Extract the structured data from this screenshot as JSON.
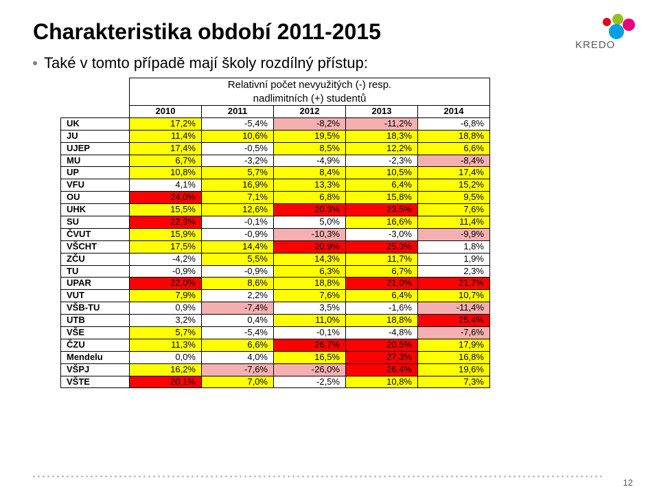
{
  "title": "Charakteristika období 2011-2015",
  "bullet": "Také v tomto případě mají školy rozdílný přístup:",
  "table_title_line1": "Relativní počet nevyužitých (-) resp.",
  "table_title_line2": "nadlimitních (+) studentů",
  "years": [
    "2010",
    "2011",
    "2012",
    "2013",
    "2014"
  ],
  "colors": {
    "yellow": "#ffff00",
    "red": "#ff0000",
    "pink": "#f4b0b0",
    "white": "#ffffff"
  },
  "rows": [
    {
      "label": "UK",
      "cells": [
        {
          "v": "17,2%",
          "c": "yellow"
        },
        {
          "v": "-5,4%",
          "c": "white"
        },
        {
          "v": "-8,2%",
          "c": "pink"
        },
        {
          "v": "-11,2%",
          "c": "pink"
        },
        {
          "v": "-6,8%",
          "c": "white"
        }
      ]
    },
    {
      "label": "JU",
      "cells": [
        {
          "v": "11,4%",
          "c": "yellow"
        },
        {
          "v": "10,6%",
          "c": "yellow"
        },
        {
          "v": "19,5%",
          "c": "yellow"
        },
        {
          "v": "18,3%",
          "c": "yellow"
        },
        {
          "v": "18,8%",
          "c": "yellow"
        }
      ]
    },
    {
      "label": "UJEP",
      "cells": [
        {
          "v": "17,4%",
          "c": "yellow"
        },
        {
          "v": "-0,5%",
          "c": "white"
        },
        {
          "v": "8,5%",
          "c": "yellow"
        },
        {
          "v": "12,2%",
          "c": "yellow"
        },
        {
          "v": "6,6%",
          "c": "yellow"
        }
      ]
    },
    {
      "label": "MU",
      "cells": [
        {
          "v": "6,7%",
          "c": "yellow"
        },
        {
          "v": "-3,2%",
          "c": "white"
        },
        {
          "v": "-4,9%",
          "c": "white"
        },
        {
          "v": "-2,3%",
          "c": "white"
        },
        {
          "v": "-8,4%",
          "c": "pink"
        }
      ]
    },
    {
      "label": "UP",
      "cells": [
        {
          "v": "10,8%",
          "c": "yellow"
        },
        {
          "v": "5,7%",
          "c": "yellow"
        },
        {
          "v": "8,4%",
          "c": "yellow"
        },
        {
          "v": "10,5%",
          "c": "yellow"
        },
        {
          "v": "17,4%",
          "c": "yellow"
        }
      ]
    },
    {
      "label": "VFU",
      "cells": [
        {
          "v": "4,1%",
          "c": "white"
        },
        {
          "v": "16,9%",
          "c": "yellow"
        },
        {
          "v": "13,3%",
          "c": "yellow"
        },
        {
          "v": "6,4%",
          "c": "yellow"
        },
        {
          "v": "15,2%",
          "c": "yellow"
        }
      ]
    },
    {
      "label": "OU",
      "cells": [
        {
          "v": "24,0%",
          "c": "red"
        },
        {
          "v": "7,1%",
          "c": "yellow"
        },
        {
          "v": "6,8%",
          "c": "yellow"
        },
        {
          "v": "15,8%",
          "c": "yellow"
        },
        {
          "v": "9,5%",
          "c": "yellow"
        }
      ]
    },
    {
      "label": "UHK",
      "cells": [
        {
          "v": "15,5%",
          "c": "yellow"
        },
        {
          "v": "12,6%",
          "c": "yellow"
        },
        {
          "v": "20,3%",
          "c": "red"
        },
        {
          "v": "23,5%",
          "c": "red"
        },
        {
          "v": "7,6%",
          "c": "yellow"
        }
      ]
    },
    {
      "label": "SU",
      "cells": [
        {
          "v": "22,3%",
          "c": "red"
        },
        {
          "v": "-0,1%",
          "c": "white"
        },
        {
          "v": "5,0%",
          "c": "white"
        },
        {
          "v": "16,6%",
          "c": "yellow"
        },
        {
          "v": "11,4%",
          "c": "yellow"
        }
      ]
    },
    {
      "label": "ČVUT",
      "cells": [
        {
          "v": "15,9%",
          "c": "yellow"
        },
        {
          "v": "-0,9%",
          "c": "white"
        },
        {
          "v": "-10,3%",
          "c": "pink"
        },
        {
          "v": "-3,0%",
          "c": "white"
        },
        {
          "v": "-9,9%",
          "c": "pink"
        }
      ]
    },
    {
      "label": "VŠCHT",
      "cells": [
        {
          "v": "17,5%",
          "c": "yellow"
        },
        {
          "v": "14,4%",
          "c": "yellow"
        },
        {
          "v": "20,9%",
          "c": "red"
        },
        {
          "v": "25,3%",
          "c": "red"
        },
        {
          "v": "1,8%",
          "c": "white"
        }
      ]
    },
    {
      "label": "ZČU",
      "cells": [
        {
          "v": "-4,2%",
          "c": "white"
        },
        {
          "v": "5,5%",
          "c": "yellow"
        },
        {
          "v": "14,3%",
          "c": "yellow"
        },
        {
          "v": "11,7%",
          "c": "yellow"
        },
        {
          "v": "1,9%",
          "c": "white"
        }
      ]
    },
    {
      "label": "TU",
      "cells": [
        {
          "v": "-0,9%",
          "c": "white"
        },
        {
          "v": "-0,9%",
          "c": "white"
        },
        {
          "v": "6,3%",
          "c": "yellow"
        },
        {
          "v": "6,7%",
          "c": "yellow"
        },
        {
          "v": "2,3%",
          "c": "white"
        }
      ]
    },
    {
      "label": "UPAR",
      "cells": [
        {
          "v": "22,0%",
          "c": "red"
        },
        {
          "v": "8,6%",
          "c": "yellow"
        },
        {
          "v": "18,8%",
          "c": "yellow"
        },
        {
          "v": "21,0%",
          "c": "red"
        },
        {
          "v": "21,7%",
          "c": "red"
        }
      ]
    },
    {
      "label": "VUT",
      "cells": [
        {
          "v": "7,9%",
          "c": "yellow"
        },
        {
          "v": "2,2%",
          "c": "white"
        },
        {
          "v": "7,6%",
          "c": "yellow"
        },
        {
          "v": "6,4%",
          "c": "yellow"
        },
        {
          "v": "10,7%",
          "c": "yellow"
        }
      ]
    },
    {
      "label": "VŠB-TU",
      "cells": [
        {
          "v": "0,9%",
          "c": "white"
        },
        {
          "v": "-7,4%",
          "c": "pink"
        },
        {
          "v": "3,5%",
          "c": "white"
        },
        {
          "v": "-1,6%",
          "c": "white"
        },
        {
          "v": "-11,4%",
          "c": "pink"
        }
      ]
    },
    {
      "label": "UTB",
      "cells": [
        {
          "v": "3,2%",
          "c": "white"
        },
        {
          "v": "0,4%",
          "c": "white"
        },
        {
          "v": "11,0%",
          "c": "yellow"
        },
        {
          "v": "18,8%",
          "c": "yellow"
        },
        {
          "v": "25,4%",
          "c": "red"
        }
      ]
    },
    {
      "label": "VŠE",
      "cells": [
        {
          "v": "5,7%",
          "c": "yellow"
        },
        {
          "v": "-5,4%",
          "c": "white"
        },
        {
          "v": "-0,1%",
          "c": "white"
        },
        {
          "v": "-4,8%",
          "c": "white"
        },
        {
          "v": "-7,6%",
          "c": "pink"
        }
      ]
    },
    {
      "label": "ČZU",
      "cells": [
        {
          "v": "11,3%",
          "c": "yellow"
        },
        {
          "v": "6,6%",
          "c": "yellow"
        },
        {
          "v": "26,7%",
          "c": "red"
        },
        {
          "v": "20,5%",
          "c": "red"
        },
        {
          "v": "17,9%",
          "c": "yellow"
        }
      ]
    },
    {
      "label": "Mendelu",
      "cells": [
        {
          "v": "0,0%",
          "c": "white"
        },
        {
          "v": "4,0%",
          "c": "white"
        },
        {
          "v": "16,5%",
          "c": "yellow"
        },
        {
          "v": "27,3%",
          "c": "red"
        },
        {
          "v": "16,8%",
          "c": "yellow"
        }
      ]
    },
    {
      "label": "VŠPJ",
      "cells": [
        {
          "v": "16,2%",
          "c": "yellow"
        },
        {
          "v": "-7,6%",
          "c": "pink"
        },
        {
          "v": "-26,0%",
          "c": "pink"
        },
        {
          "v": "26,4%",
          "c": "red"
        },
        {
          "v": "19,6%",
          "c": "yellow"
        }
      ]
    },
    {
      "label": "VŠTE",
      "cells": [
        {
          "v": "20,1%",
          "c": "red"
        },
        {
          "v": "7,0%",
          "c": "yellow"
        },
        {
          "v": "-2,5%",
          "c": "white"
        },
        {
          "v": "10,8%",
          "c": "yellow"
        },
        {
          "v": "7,3%",
          "c": "yellow"
        }
      ]
    }
  ],
  "col_widths": {
    "label": 100,
    "data": 105
  },
  "page_number": "12",
  "logo_text": "KREDO",
  "logo_colors": [
    "#e30613",
    "#95c11f",
    "#e6007e",
    "#009fe3"
  ]
}
